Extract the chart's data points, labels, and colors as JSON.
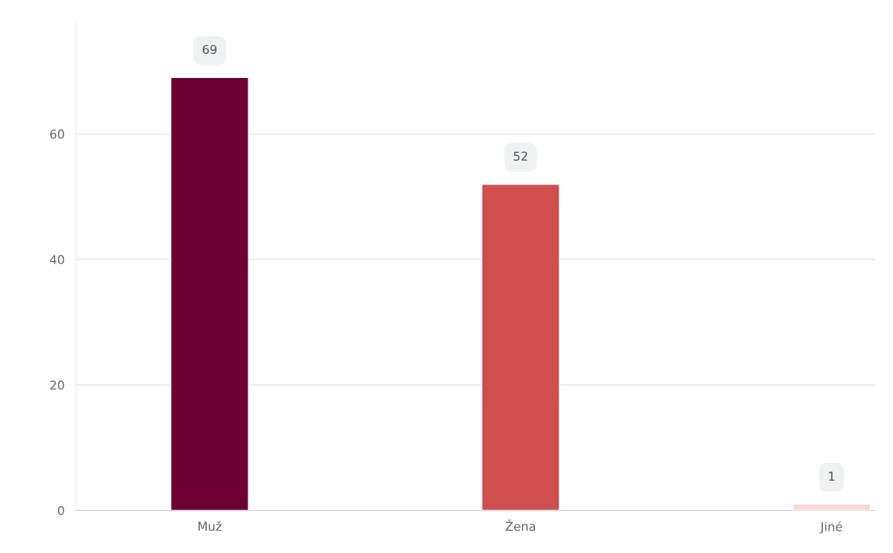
{
  "chart_data": {
    "type": "bar",
    "categories": [
      "Muž",
      "Žena",
      "Jiné"
    ],
    "values": [
      69,
      52,
      1
    ],
    "colors": [
      "#6b0033",
      "#cf4f4f",
      "#f8d6d1"
    ],
    "ylim": [
      0,
      78
    ],
    "yticks": [
      0,
      20,
      40,
      60
    ],
    "grid": "y",
    "data_labels": true
  }
}
